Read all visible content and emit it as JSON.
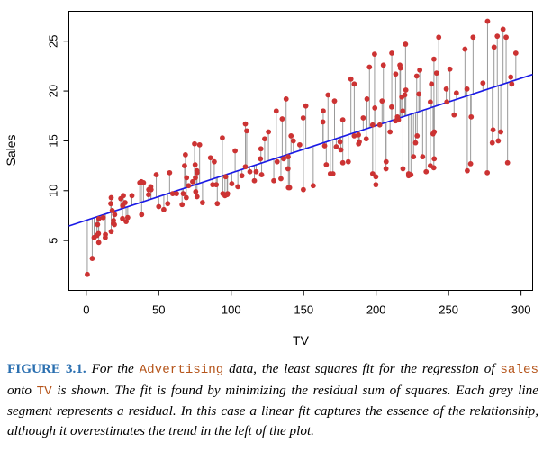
{
  "chart_data": {
    "type": "scatter",
    "title": "",
    "xlabel": "TV",
    "ylabel": "Sales",
    "xlim": [
      -12,
      308
    ],
    "ylim": [
      0,
      28
    ],
    "xticks": [
      0,
      50,
      100,
      150,
      200,
      250,
      300
    ],
    "yticks": [
      5,
      10,
      15,
      20,
      25
    ],
    "grid": false,
    "colors": {
      "points": "#cc3333",
      "fit_line": "#1a1ae6",
      "residuals": "#999999"
    },
    "fit_line": {
      "intercept": 7.03,
      "slope": 0.0475,
      "label": "least squares fit"
    },
    "x": [
      230.1,
      44.5,
      17.2,
      151.5,
      180.8,
      8.7,
      57.5,
      120.2,
      8.6,
      199.8,
      66.1,
      214.7,
      23.8,
      97.5,
      204.1,
      195.4,
      67.8,
      281.4,
      69.2,
      147.3,
      218.4,
      237.4,
      13.2,
      228.3,
      62.3,
      262.9,
      142.9,
      240.1,
      248.8,
      70.6,
      292.9,
      112.9,
      97.2,
      265.6,
      95.7,
      290.7,
      266.9,
      74.7,
      43.1,
      228.0,
      202.5,
      177.0,
      293.6,
      206.9,
      25.1,
      175.1,
      89.7,
      239.9,
      227.2,
      66.9,
      199.8,
      100.4,
      216.4,
      182.6,
      262.7,
      198.9,
      7.3,
      136.2,
      210.8,
      210.7,
      53.5,
      261.3,
      239.3,
      102.7,
      131.1,
      69.0,
      31.5,
      139.3,
      237.4,
      216.8,
      199.1,
      109.8,
      26.8,
      129.4,
      213.4,
      16.9,
      27.5,
      120.5,
      5.4,
      116.0,
      76.4,
      239.8,
      75.3,
      68.4,
      213.5,
      193.2,
      76.3,
      110.7,
      88.3,
      109.8,
      134.3,
      28.6,
      217.7,
      250.9,
      107.4,
      163.3,
      197.6,
      184.9,
      289.7,
      135.2,
      222.4,
      296.4,
      280.2,
      187.9,
      238.2,
      137.9,
      25.0,
      90.4,
      13.1,
      255.4,
      225.8,
      241.7,
      175.7,
      209.6,
      78.2,
      75.1,
      139.2,
      76.4,
      125.7,
      19.4,
      141.3,
      18.8,
      224.0,
      123.1,
      229.5,
      87.2,
      7.8,
      80.2,
      220.3,
      59.6,
      0.7,
      265.2,
      8.4,
      219.8,
      36.9,
      48.3,
      25.6,
      273.7,
      43.0,
      184.9,
      73.4,
      193.7,
      220.5,
      104.6,
      96.2,
      140.3,
      240.1,
      243.2,
      38.0,
      44.7,
      280.7,
      121.0,
      197.6,
      171.3,
      187.8,
      4.1,
      93.9,
      149.8,
      11.7,
      131.7,
      172.5,
      85.7,
      188.4,
      163.5,
      117.2,
      234.5,
      17.9,
      206.8,
      215.4,
      284.3,
      50.0,
      164.5,
      19.6,
      168.4,
      222.4,
      276.9,
      248.4,
      170.2,
      276.7,
      165.6,
      156.6,
      218.5,
      56.2,
      287.6,
      253.8,
      205.0,
      139.5,
      191.1,
      286.0,
      18.7,
      39.5,
      75.5,
      17.2,
      166.8,
      149.7,
      38.2,
      94.2,
      177.0,
      283.6,
      232.1
    ],
    "y": [
      22.1,
      10.4,
      9.3,
      18.5,
      12.9,
      7.2,
      11.8,
      13.2,
      4.8,
      10.6,
      8.6,
      17.4,
      9.2,
      9.7,
      19.0,
      22.4,
      12.5,
      24.4,
      11.3,
      14.6,
      18.0,
      12.5,
      5.6,
      15.5,
      9.7,
      12.0,
      15.0,
      15.9,
      18.9,
      10.5,
      21.4,
      11.9,
      9.6,
      17.4,
      9.5,
      12.8,
      25.4,
      14.7,
      10.1,
      21.5,
      16.6,
      17.1,
      20.7,
      12.9,
      8.5,
      14.9,
      10.6,
      23.2,
      14.8,
      9.7,
      11.4,
      10.7,
      22.6,
      21.2,
      20.2,
      23.7,
      5.5,
      13.2,
      23.8,
      18.4,
      8.1,
      24.2,
      15.7,
      14.0,
      18.0,
      9.3,
      9.5,
      13.4,
      18.9,
      22.3,
      18.3,
      12.4,
      8.8,
      11.0,
      17.0,
      8.7,
      6.9,
      14.2,
      5.3,
      11.0,
      11.8,
      12.3,
      11.3,
      13.6,
      21.7,
      15.2,
      12.0,
      16.0,
      12.9,
      16.7,
      11.2,
      7.3,
      19.4,
      22.2,
      11.5,
      16.9,
      11.7,
      15.5,
      25.4,
      17.2,
      11.7,
      23.8,
      14.8,
      14.7,
      20.7,
      19.2,
      7.2,
      8.7,
      5.3,
      19.8,
      13.4,
      21.8,
      14.1,
      15.9,
      14.6,
      12.6,
      12.2,
      9.4,
      15.9,
      6.6,
      15.5,
      7.0,
      11.6,
      15.2,
      19.7,
      10.6,
      6.6,
      8.8,
      24.7,
      9.7,
      1.6,
      12.7,
      5.7,
      19.6,
      10.8,
      11.6,
      9.5,
      20.8,
      9.6,
      20.7,
      10.9,
      19.2,
      20.1,
      10.4,
      11.4,
      10.3,
      13.2,
      25.4,
      10.9,
      10.1,
      16.1,
      11.6,
      16.6,
      19.0,
      15.6,
      3.2,
      15.3,
      10.1,
      7.3,
      12.9,
      14.4,
      13.3,
      14.9,
      18.0,
      11.9,
      11.9,
      8.0,
      12.2,
      17.1,
      15.0,
      8.4,
      14.5,
      7.6,
      11.7,
      11.5,
      27.0,
      20.2,
      11.7,
      11.8,
      12.6,
      10.5,
      12.2,
      8.7,
      26.2,
      17.6,
      22.6,
      10.3,
      17.3,
      15.9,
      6.7,
      10.8,
      9.9,
      5.9,
      19.6,
      17.3,
      7.6,
      9.7,
      12.8,
      25.5,
      13.4
    ]
  },
  "caption": {
    "label": "FIGURE 3.1.",
    "t1": " For the ",
    "c1": "Advertising",
    "t2": " data, the least squares fit for the regression of ",
    "c2": "sales",
    "t3": " onto ",
    "c3": "TV",
    "t4": " is shown. The fit is found by minimizing the residual sum of squares. Each grey line segment represents a residual. In this case a linear fit captures the essence of the relationship, although it overestimates the trend in the left of the plot."
  }
}
